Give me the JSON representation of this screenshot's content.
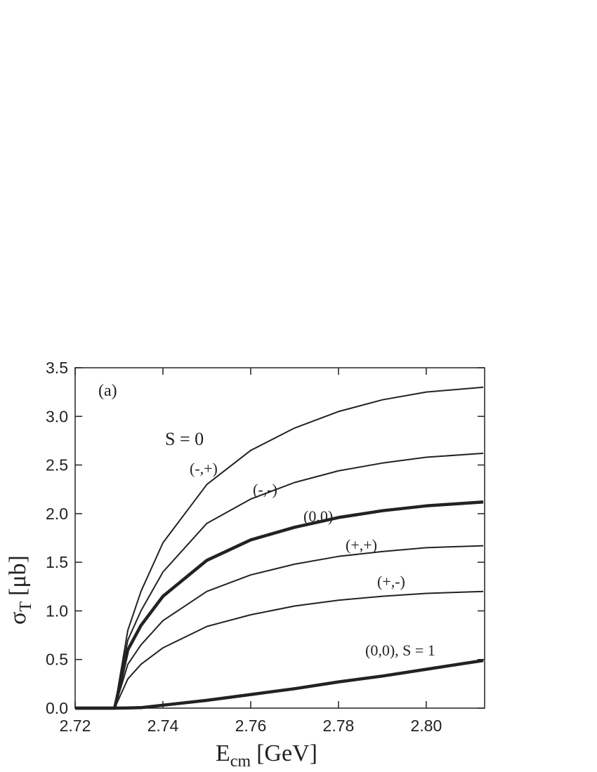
{
  "chart_data": {
    "type": "line",
    "annotation_panel": "(a)",
    "annotation_group": "S = 0",
    "xlabel": "E",
    "xlabel_sub": "cm",
    "xlabel_unit": "[GeV]",
    "ylabel": "σ",
    "ylabel_sub": "T",
    "ylabel_unit": "[μb]",
    "x": [
      2.72,
      2.729,
      2.732,
      2.735,
      2.74,
      2.75,
      2.76,
      2.77,
      2.78,
      2.79,
      2.8,
      2.813
    ],
    "series": [
      {
        "name": "(-,+)",
        "color": "#222222",
        "width": 2,
        "values": [
          0,
          0,
          0.8,
          1.2,
          1.7,
          2.3,
          2.65,
          2.88,
          3.05,
          3.17,
          3.25,
          3.3
        ]
      },
      {
        "name": "(-,-)",
        "color": "#222222",
        "width": 2,
        "values": [
          0,
          0,
          0.7,
          1.0,
          1.4,
          1.9,
          2.15,
          2.32,
          2.44,
          2.52,
          2.58,
          2.62
        ]
      },
      {
        "name": "(0,0)",
        "color": "#222222",
        "width": 4.5,
        "values": [
          0,
          0,
          0.6,
          0.85,
          1.15,
          1.52,
          1.73,
          1.86,
          1.96,
          2.03,
          2.08,
          2.12
        ]
      },
      {
        "name": "(+,+)",
        "color": "#222222",
        "width": 2,
        "values": [
          0,
          0,
          0.45,
          0.65,
          0.9,
          1.2,
          1.37,
          1.48,
          1.56,
          1.61,
          1.65,
          1.67
        ]
      },
      {
        "name": "(+,-)",
        "color": "#222222",
        "width": 2,
        "values": [
          0,
          0,
          0.3,
          0.45,
          0.62,
          0.84,
          0.96,
          1.05,
          1.11,
          1.15,
          1.18,
          1.2
        ]
      },
      {
        "name": "(0,0), S = 1",
        "color": "#222222",
        "width": 4.5,
        "values": [
          0,
          0,
          0.002,
          0.005,
          0.03,
          0.08,
          0.14,
          0.2,
          0.27,
          0.33,
          0.4,
          0.49
        ]
      }
    ],
    "xlim": [
      2.72,
      2.8133
    ],
    "xticks": [
      2.72,
      2.74,
      2.76,
      2.78,
      {
        "value": 2.8,
        "label": "2.80"
      }
    ],
    "ylim": [
      0,
      3.5
    ],
    "yticks": [
      {
        "value": 0,
        "label": "0.0"
      },
      0.5,
      {
        "value": 1,
        "label": "1.0"
      },
      1.5,
      {
        "value": 2,
        "label": "2.0"
      },
      2.5,
      {
        "value": 3,
        "label": "3.0"
      },
      3.5
    ]
  }
}
